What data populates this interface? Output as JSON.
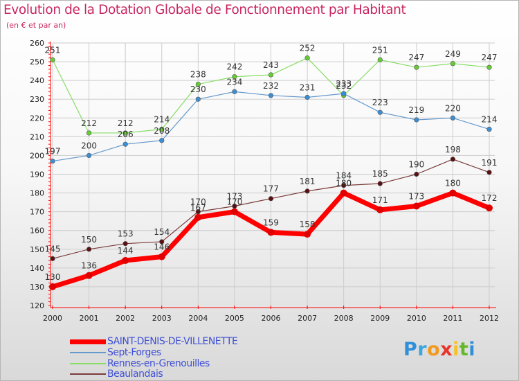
{
  "header": {
    "title": "Evolution de la Dotation Globale de Fonctionnement par Habitant",
    "subtitle": "(en € et par an)"
  },
  "colors": {
    "title": "#c8255f",
    "legend_text": "#3f4fd6",
    "axis": "#ff0000",
    "grid": "#cccccc"
  },
  "chart_data": {
    "type": "line",
    "x": [
      "2000",
      "2001",
      "2002",
      "2003",
      "2004",
      "2005",
      "2006",
      "2007",
      "2008",
      "2009",
      "2010",
      "2011",
      "2012"
    ],
    "ylim": [
      120,
      260
    ],
    "yticks": [
      120,
      130,
      140,
      150,
      160,
      170,
      180,
      190,
      200,
      210,
      220,
      230,
      240,
      250,
      260
    ],
    "grid": true,
    "legend_position": "bottom",
    "series": [
      {
        "name": "SAINT-DENIS-DE-VILLENETTE",
        "color": "#ff0000",
        "marker": "#e00000",
        "width": 7,
        "values": [
          130,
          136,
          144,
          146,
          167,
          170,
          159,
          158,
          180,
          171,
          173,
          180,
          172
        ]
      },
      {
        "name": "Sept-Forges",
        "color": "#6699cc",
        "marker": "#3b8fd4",
        "width": 1.2,
        "values": [
          197,
          200,
          206,
          208,
          230,
          234,
          232,
          231,
          233,
          223,
          219,
          220,
          214
        ]
      },
      {
        "name": "Rennes-en-Grenouilles",
        "color": "#88dd66",
        "marker": "#66cc33",
        "width": 1.2,
        "values": [
          251,
          212,
          212,
          214,
          238,
          242,
          243,
          252,
          232,
          251,
          247,
          249,
          247
        ]
      },
      {
        "name": "Beaulandais",
        "color": "#7a3b3b",
        "marker": "#5a1010",
        "width": 1.2,
        "values": [
          145,
          150,
          153,
          154,
          170,
          173,
          177,
          181,
          184,
          185,
          190,
          198,
          191
        ]
      }
    ]
  },
  "logo": {
    "letters": [
      "P",
      "r",
      "o",
      "x",
      "i",
      "t",
      "i"
    ],
    "colors": [
      "#2f8fd8",
      "#3aa6e0",
      "#f39a1e",
      "#e8342a",
      "#f7c21e",
      "#66b82a",
      "#2f8fd8"
    ]
  }
}
